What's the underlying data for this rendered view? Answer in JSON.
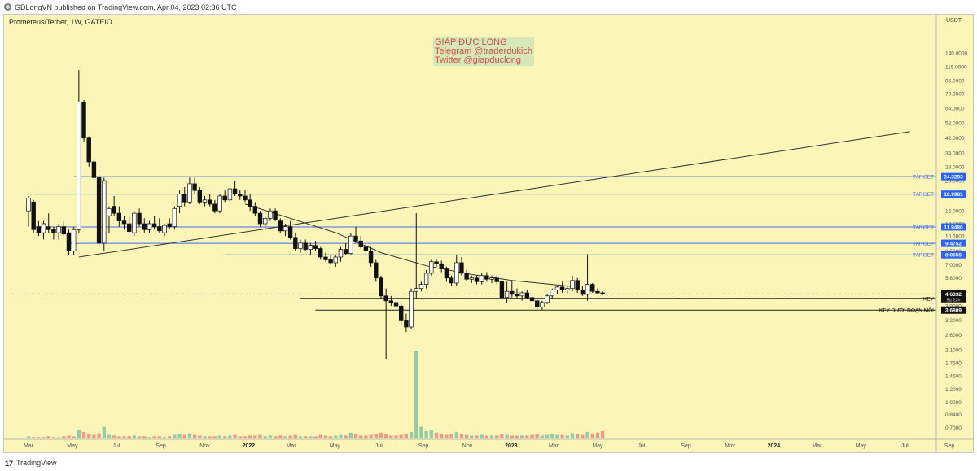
{
  "header": {
    "published": "GDLongVN published on TradingView.com, Apr 04, 2023 02:36 UTC"
  },
  "footer": {
    "brand": "TradingView",
    "logo": "17"
  },
  "watermark": {
    "line1": "GIÁP ĐỨC LONG",
    "line2": "Telegram @traderdukich",
    "line3": "Twitter @giapduclong"
  },
  "colors": {
    "background": "#fbf5b8",
    "bull": "#ffffff",
    "bear": "#111111",
    "target_line": "#3b6ff5",
    "target_label": "#2962ff",
    "volume_up": "#7fc4a4",
    "volume_down": "#f08a7c",
    "key_label": "#000000",
    "price_label": "#111111"
  },
  "chart_data": {
    "type": "candlestick",
    "title": "Prometeus/Tether, 1W, GATEIO",
    "y_unit": "USDT",
    "y_scale": "log",
    "ylim": [
      0.62,
      230
    ],
    "y_ticks": [
      "140.0000",
      "115.0000",
      "95.0000",
      "79.0000",
      "64.0000",
      "52.0000",
      "42.0000",
      "34.0000",
      "28.0000",
      "23.0000",
      "19.0000",
      "15.0000",
      "12.5000",
      "10.5000",
      "8.5000",
      "7.0000",
      "5.8000",
      "4.8000",
      "3.9000",
      "3.2000",
      "2.6000",
      "2.1000",
      "1.7500",
      "1.4500",
      "1.2000",
      "1.0000",
      "0.8400",
      "0.7000"
    ],
    "x_ticks": [
      "Mar",
      "May",
      "Jul",
      "Sep",
      "Nov",
      "2022",
      "Mar",
      "May",
      "Jul",
      "Sep",
      "Nov",
      "2023",
      "Mar",
      "May",
      "Jul",
      "Sep",
      "Nov",
      "2024",
      "Mar",
      "May",
      "Jul",
      "Sep"
    ],
    "candles": {
      "start": "2021-03-01",
      "interval": "1W",
      "ohlc": [
        [
          15,
          18.5,
          12,
          18
        ],
        [
          17,
          17.5,
          11,
          11.5
        ],
        [
          12,
          13,
          10.5,
          11
        ],
        [
          11,
          13,
          10,
          12.5
        ],
        [
          12,
          14.5,
          11,
          11.5
        ],
        [
          11.5,
          12,
          10,
          11
        ],
        [
          11,
          12.5,
          10,
          12
        ],
        [
          12,
          13,
          10.5,
          10.8
        ],
        [
          11,
          11.5,
          8,
          8.5
        ],
        [
          8.5,
          12,
          8,
          11.5
        ],
        [
          11.5,
          110,
          11,
          70
        ],
        [
          70,
          72,
          40,
          42
        ],
        [
          42,
          43,
          28,
          30
        ],
        [
          30,
          31,
          23,
          24
        ],
        [
          24,
          25,
          9,
          9.5
        ],
        [
          9.5,
          24,
          8.5,
          23
        ],
        [
          14,
          16,
          11,
          15.5
        ],
        [
          16,
          18.5,
          14,
          14.5
        ],
        [
          14.5,
          16,
          12,
          13
        ],
        [
          13,
          14,
          11.5,
          12.5
        ],
        [
          12.5,
          14,
          11,
          11.2
        ],
        [
          11,
          15,
          10.5,
          14.5
        ],
        [
          14.5,
          15.5,
          12,
          12.5
        ],
        [
          12.5,
          13.5,
          11,
          11.5
        ],
        [
          11.5,
          13,
          11,
          12.5
        ],
        [
          12.5,
          14,
          11.5,
          12
        ],
        [
          12,
          13.5,
          11,
          11.3
        ],
        [
          11,
          12.5,
          10.5,
          12.2
        ],
        [
          12.5,
          13.5,
          11.5,
          12
        ],
        [
          12,
          16,
          11.5,
          15.5
        ],
        [
          16,
          20,
          14.5,
          19
        ],
        [
          19,
          21,
          16,
          17
        ],
        [
          17,
          24,
          16.5,
          22
        ],
        [
          22,
          24,
          19,
          20
        ],
        [
          20,
          21,
          16.5,
          17
        ],
        [
          17,
          18.5,
          16,
          17.5
        ],
        [
          17.5,
          19,
          16,
          16.5
        ],
        [
          16.5,
          17.5,
          14.5,
          15
        ],
        [
          15,
          19,
          14.5,
          18.5
        ],
        [
          18.5,
          20,
          17,
          17.5
        ],
        [
          17.5,
          21,
          17,
          20.5
        ],
        [
          20.5,
          23,
          18.5,
          19
        ],
        [
          19,
          20,
          17.5,
          18.5
        ],
        [
          18.5,
          20,
          17,
          17.5
        ],
        [
          17.5,
          19,
          15,
          16
        ],
        [
          16,
          17,
          14,
          14.5
        ],
        [
          14.5,
          15,
          12,
          12.5
        ],
        [
          12.5,
          14,
          11.5,
          13.5
        ],
        [
          13.5,
          15.5,
          13,
          15
        ],
        [
          15,
          15.5,
          13,
          13.2
        ],
        [
          13,
          13.5,
          11,
          11.3
        ],
        [
          11.3,
          12.5,
          10.5,
          12
        ],
        [
          12,
          13,
          10,
          10.3
        ],
        [
          10.3,
          11,
          8.5,
          8.8
        ],
        [
          8.8,
          10,
          8.3,
          9.5
        ],
        [
          9.5,
          10,
          8.5,
          8.7
        ],
        [
          8.7,
          9.5,
          8,
          9.2
        ],
        [
          9.2,
          9.8,
          8.5,
          8.8
        ],
        [
          8.8,
          9,
          7.5,
          7.8
        ],
        [
          7.8,
          8.3,
          7.3,
          7.5
        ],
        [
          7.5,
          8,
          7,
          7.2
        ],
        [
          7.2,
          8,
          6.8,
          7.8
        ],
        [
          7.8,
          9,
          7.3,
          8.7
        ],
        [
          8.7,
          9.5,
          8,
          8.2
        ],
        [
          8.2,
          11,
          8,
          10.5
        ],
        [
          10.5,
          12,
          9.5,
          9.8
        ],
        [
          9.8,
          10.5,
          8.8,
          9
        ],
        [
          9,
          9.5,
          8.2,
          8.5
        ],
        [
          8.5,
          9,
          6.8,
          7.2
        ],
        [
          7.2,
          7.5,
          5.5,
          5.8
        ],
        [
          5.8,
          6,
          4.3,
          4.5
        ],
        [
          4.5,
          5,
          1.85,
          4.2
        ],
        [
          4.2,
          4.5,
          3.9,
          4.1
        ],
        [
          4.1,
          4.6,
          3.7,
          3.9
        ],
        [
          3.9,
          4.1,
          3,
          3.2
        ],
        [
          3.2,
          3.5,
          2.7,
          2.9
        ],
        [
          2.9,
          5,
          2.8,
          4.8
        ],
        [
          4.8,
          14.5,
          4.3,
          5
        ],
        [
          5,
          5.5,
          4.8,
          5.3
        ],
        [
          5.3,
          6.5,
          5,
          6.2
        ],
        [
          6.2,
          7.5,
          6,
          7.3
        ],
        [
          7.3,
          7.6,
          6.8,
          7.1
        ],
        [
          7.1,
          7.4,
          6.3,
          6.6
        ],
        [
          6.6,
          6.8,
          5.5,
          5.8
        ],
        [
          5.8,
          6,
          5.2,
          5.4
        ],
        [
          5.4,
          8,
          5.2,
          7.2
        ],
        [
          7.2,
          7.8,
          6,
          6.2
        ],
        [
          6.2,
          6.5,
          5.5,
          5.7
        ],
        [
          5.7,
          6,
          5.4,
          5.8
        ],
        [
          5.8,
          6,
          5.3,
          5.5
        ],
        [
          5.5,
          6.2,
          5.3,
          6
        ],
        [
          6,
          6.3,
          5.5,
          5.7
        ],
        [
          5.7,
          6,
          5.4,
          5.8
        ],
        [
          5.8,
          6,
          5.3,
          5.5
        ],
        [
          5.5,
          5.8,
          4.2,
          4.4
        ],
        [
          4.4,
          5.5,
          4.1,
          4.8
        ],
        [
          4.8,
          5.6,
          4.4,
          4.6
        ],
        [
          4.6,
          5,
          4.3,
          4.5
        ],
        [
          4.5,
          4.8,
          4.2,
          4.7
        ],
        [
          4.7,
          4.9,
          4.3,
          4.4
        ],
        [
          4.4,
          4.6,
          4,
          4.2
        ],
        [
          4.2,
          4.3,
          3.7,
          3.85
        ],
        [
          3.85,
          4.2,
          3.7,
          4.1
        ],
        [
          4.1,
          4.6,
          4,
          4.5
        ],
        [
          4.5,
          5,
          4.3,
          4.9
        ],
        [
          4.9,
          5.2,
          4.6,
          5.1
        ],
        [
          5.1,
          5.5,
          4.7,
          4.9
        ],
        [
          4.9,
          5.2,
          4.6,
          5
        ],
        [
          5,
          6,
          4.8,
          5.6
        ],
        [
          5.6,
          5.8,
          4.7,
          4.9
        ],
        [
          4.9,
          5.2,
          4.5,
          4.6
        ],
        [
          4.6,
          8.1,
          4.2,
          5.3
        ],
        [
          5.3,
          5.4,
          4.7,
          4.8
        ],
        [
          4.8,
          5,
          4.6,
          4.7
        ],
        [
          4.7,
          4.8,
          4.55,
          4.63
        ]
      ]
    },
    "volume": [
      3,
      2,
      2,
      2,
      3,
      2,
      2,
      3,
      4,
      3,
      12,
      9,
      6,
      5,
      7,
      16,
      5,
      4,
      3,
      3,
      3,
      4,
      3,
      3,
      2,
      3,
      3,
      2,
      3,
      5,
      6,
      5,
      7,
      5,
      4,
      3,
      3,
      3,
      4,
      3,
      4,
      5,
      3,
      3,
      4,
      4,
      5,
      3,
      4,
      3,
      4,
      3,
      4,
      5,
      3,
      3,
      3,
      3,
      5,
      4,
      3,
      4,
      5,
      4,
      8,
      6,
      4,
      4,
      5,
      6,
      8,
      6,
      4,
      4,
      5,
      6,
      9,
      120,
      16,
      10,
      12,
      8,
      6,
      5,
      6,
      9,
      6,
      5,
      4,
      4,
      5,
      4,
      4,
      4,
      6,
      5,
      4,
      4,
      4,
      4,
      5,
      6,
      4,
      5,
      6,
      5,
      5,
      4,
      7,
      6,
      5,
      9,
      7,
      8,
      10
    ],
    "moving_average": [
      [
        "2021-12-27",
        16.5
      ],
      [
        "2022-03-07",
        13.2
      ],
      [
        "2022-05-02",
        11
      ],
      [
        "2022-07-04",
        8.3
      ],
      [
        "2022-09-05",
        6.9
      ],
      [
        "2022-11-07",
        6.1
      ],
      [
        "2023-01-02",
        5.6
      ],
      [
        "2023-03-27",
        5.15
      ]
    ],
    "trendline": {
      "from": [
        "2021-05-10",
        7.8
      ],
      "to": [
        "2024-07-08",
        46
      ]
    },
    "levels": [
      {
        "label": "TARGET",
        "value": "24.3293",
        "price": 24.3293,
        "from": "2021-05-03"
      },
      {
        "label": "TARGET",
        "value": "18.9981",
        "price": 18.9981,
        "from": "2021-03-01"
      },
      {
        "label": "TARGET",
        "value": "11.9480",
        "price": 11.948,
        "from": "2021-03-08"
      },
      {
        "label": "TARGET",
        "value": "9.4752",
        "price": 9.4752,
        "from": "2021-04-26"
      },
      {
        "label": "TARGET",
        "value": "8.0555",
        "price": 8.0555,
        "from": "2021-11-29"
      },
      {
        "label": "KEY",
        "value": "4.3468",
        "price": 4.3468,
        "from": "2022-03-14"
      },
      {
        "label": "KEY DƯỚI ĐOẠN MỒI",
        "value": "3.6809",
        "price": 3.6809,
        "from": "2022-04-04"
      }
    ],
    "last_price": {
      "value": "4.6332",
      "countdown": "5d 22h",
      "price": 4.6332
    }
  }
}
